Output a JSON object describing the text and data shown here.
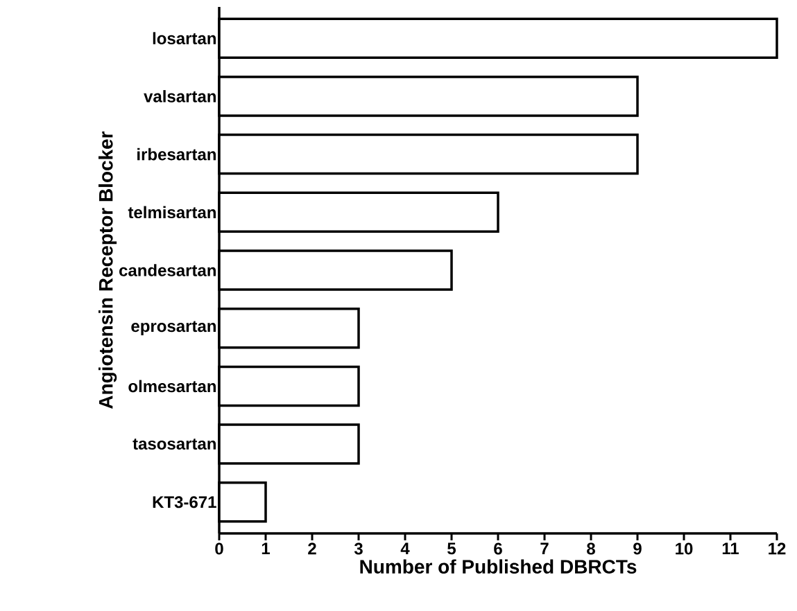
{
  "chart_data": {
    "type": "bar",
    "orientation": "horizontal",
    "xlabel": "Number of Published DBRCTs",
    "ylabel": "Angiotensin Receptor Blocker",
    "categories": [
      "losartan",
      "valsartan",
      "irbesartan",
      "telmisartan",
      "candesartan",
      "eprosartan",
      "olmesartan",
      "tasosartan",
      "KT3-671"
    ],
    "values": [
      12,
      9,
      9,
      6,
      5,
      3,
      3,
      3,
      1
    ],
    "color": "#ffffff",
    "xlim": [
      0,
      12
    ],
    "xticks": [
      0,
      1,
      2,
      3,
      4,
      5,
      6,
      7,
      8,
      9,
      10,
      11,
      12
    ],
    "grid": false
  }
}
